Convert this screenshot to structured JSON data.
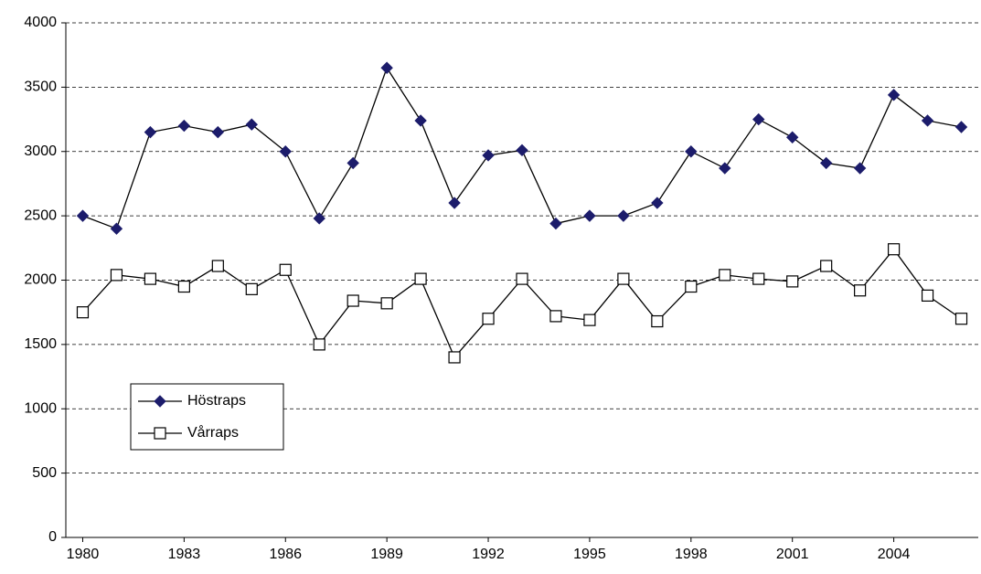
{
  "chart_data": {
    "type": "line",
    "x": [
      1980,
      1981,
      1982,
      1983,
      1984,
      1985,
      1986,
      1987,
      1988,
      1989,
      1990,
      1991,
      1992,
      1993,
      1994,
      1995,
      1996,
      1997,
      1998,
      1999,
      2000,
      2001,
      2002,
      2003,
      2004,
      2005,
      2006
    ],
    "series": [
      {
        "name": "Höstraps",
        "color": "#1c1c6b",
        "marker": "diamond",
        "values": [
          2500,
          2400,
          3150,
          3200,
          3150,
          3210,
          3000,
          2480,
          2910,
          3650,
          3240,
          2600,
          2970,
          3010,
          2440,
          2500,
          2500,
          2600,
          3000,
          2870,
          3250,
          3110,
          2910,
          2870,
          3440,
          3240,
          3190
        ]
      },
      {
        "name": "Vårraps",
        "color": "#ffffff",
        "marker": "square",
        "values": [
          1750,
          2040,
          2010,
          1950,
          2110,
          1930,
          2080,
          1500,
          1840,
          1820,
          2010,
          1400,
          1700,
          2010,
          1720,
          1690,
          2010,
          1680,
          1950,
          2040,
          2010,
          1990,
          2110,
          1920,
          2240,
          1880,
          1700
        ]
      }
    ],
    "xlim": [
      1979.5,
      2006.5
    ],
    "xticks": [
      1980,
      1983,
      1986,
      1989,
      1992,
      1995,
      1998,
      2001,
      2004
    ],
    "ylim": [
      0,
      4000
    ],
    "yticks": [
      0,
      500,
      1000,
      1500,
      2000,
      2500,
      3000,
      3500,
      4000
    ],
    "grid": true,
    "legend": "lower left"
  }
}
